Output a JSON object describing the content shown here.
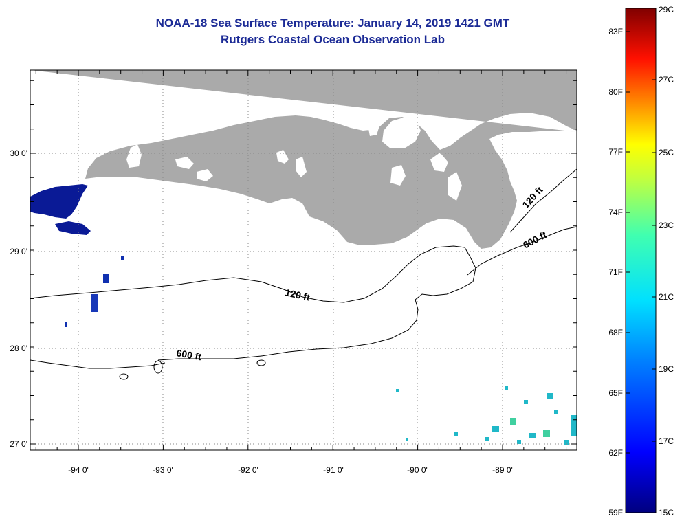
{
  "header": {
    "title": "NOAA-18 Sea Surface Temperature:  January 14, 2019 1421 GMT",
    "subtitle": "Rutgers Coastal Ocean Observation Lab"
  },
  "map": {
    "lat_labels": [
      "30 0'",
      "29 0'",
      "28 0'",
      "27 0'"
    ],
    "lon_labels": [
      "-94 0'",
      "-93 0'",
      "-92 0'",
      "-91 0'",
      "-90 0'",
      "-89 0'"
    ],
    "contours": [
      {
        "label": "120 ft"
      },
      {
        "label": "600 ft"
      },
      {
        "label": "120 ft"
      },
      {
        "label": "600 ft"
      }
    ],
    "colors": {
      "land": "#aaaaaa",
      "ocean": "#ffffff",
      "contour": "#000000"
    }
  },
  "colorbar": {
    "fahrenheit": [
      "83F",
      "80F",
      "77F",
      "74F",
      "71F",
      "68F",
      "65F",
      "62F",
      "59F"
    ],
    "celsius": [
      "29C",
      "27C",
      "25C",
      "23C",
      "21C",
      "19C",
      "17C",
      "15C"
    ]
  }
}
